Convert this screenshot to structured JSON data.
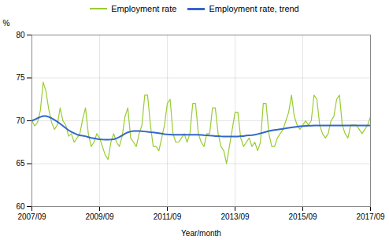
{
  "chart_data": {
    "type": "line",
    "xlabel": "Year/month",
    "ylabel": "%",
    "x": [
      0,
      1,
      2,
      3,
      4,
      5,
      6,
      7,
      8,
      9,
      10,
      11,
      12,
      13,
      14,
      15,
      16,
      17,
      18,
      19,
      20,
      21,
      22,
      23,
      24,
      25,
      26,
      27,
      28,
      29,
      30,
      31,
      32,
      33,
      34,
      35,
      36,
      37,
      38,
      39,
      40,
      41,
      42,
      43,
      44,
      45,
      46,
      47,
      48,
      49,
      50,
      51,
      52,
      53,
      54,
      55,
      56,
      57,
      58,
      59,
      60,
      61,
      62,
      63,
      64,
      65,
      66,
      67,
      68,
      69,
      70,
      71,
      72,
      73,
      74,
      75,
      76,
      77,
      78,
      79,
      80,
      81,
      82,
      83,
      84,
      85,
      86,
      87,
      88,
      89,
      90,
      91,
      92,
      93,
      94,
      95,
      96,
      97,
      98,
      99,
      100,
      101,
      102,
      103,
      104,
      105,
      106,
      107,
      108,
      109,
      110,
      111,
      112,
      113,
      114,
      115,
      116,
      117,
      118,
      119,
      120
    ],
    "xlim": [
      0,
      120
    ],
    "xticks": [
      {
        "value": 0,
        "label": "2007/09"
      },
      {
        "value": 24,
        "label": "2009/09"
      },
      {
        "value": 48,
        "label": "2011/09"
      },
      {
        "value": 72,
        "label": "2013/09"
      },
      {
        "value": 96,
        "label": "2015/09"
      },
      {
        "value": 120,
        "label": "2017/09"
      }
    ],
    "ylim": [
      60,
      80
    ],
    "yticks": [
      60,
      65,
      70,
      75,
      80
    ],
    "grid": true,
    "legend": "top",
    "series": [
      {
        "name": "Employment rate",
        "color": "#99cc33",
        "values": [
          70.0,
          69.4,
          69.8,
          71.2,
          74.5,
          73.4,
          71.3,
          69.8,
          69.0,
          69.5,
          71.5,
          70.0,
          69.5,
          68.2,
          68.5,
          67.5,
          68.0,
          68.5,
          70.2,
          71.5,
          68.5,
          67.0,
          67.5,
          68.5,
          68.0,
          67.0,
          66.0,
          65.5,
          67.5,
          68.5,
          67.5,
          67.0,
          68.2,
          70.5,
          71.5,
          68.0,
          67.5,
          67.0,
          68.5,
          69.5,
          73.0,
          73.0,
          69.5,
          67.0,
          67.0,
          66.5,
          68.0,
          69.5,
          72.0,
          72.5,
          68.5,
          67.5,
          67.5,
          68.0,
          68.5,
          67.5,
          68.5,
          72.0,
          72.0,
          68.5,
          67.5,
          67.0,
          68.5,
          68.5,
          71.5,
          71.5,
          68.5,
          67.0,
          66.5,
          65.0,
          67.0,
          69.0,
          71.0,
          71.0,
          68.0,
          67.0,
          67.5,
          68.0,
          67.0,
          67.5,
          66.5,
          67.5,
          72.0,
          72.0,
          68.5,
          67.0,
          67.0,
          68.0,
          68.5,
          69.0,
          70.0,
          71.0,
          73.0,
          70.5,
          69.5,
          69.0,
          69.5,
          70.0,
          69.5,
          70.0,
          73.0,
          72.5,
          69.5,
          68.5,
          68.0,
          68.5,
          70.0,
          70.5,
          72.5,
          73.0,
          69.5,
          68.5,
          68.0,
          69.5,
          69.5,
          69.5,
          69.0,
          68.5,
          69.0,
          69.5,
          70.5
        ]
      },
      {
        "name": "Employment rate, trend",
        "color": "#3366cc",
        "values": [
          70.0,
          70.15,
          70.3,
          70.45,
          70.55,
          70.55,
          70.45,
          70.3,
          70.1,
          69.9,
          69.65,
          69.4,
          69.15,
          68.9,
          68.7,
          68.55,
          68.4,
          68.3,
          68.25,
          68.2,
          68.1,
          68.0,
          67.95,
          67.9,
          67.85,
          67.82,
          67.8,
          67.8,
          67.82,
          67.85,
          67.95,
          68.1,
          68.3,
          68.5,
          68.65,
          68.75,
          68.8,
          68.8,
          68.8,
          68.78,
          68.75,
          68.72,
          68.68,
          68.65,
          68.6,
          68.55,
          68.5,
          68.45,
          68.42,
          68.4,
          68.38,
          68.37,
          68.37,
          68.37,
          68.37,
          68.37,
          68.37,
          68.37,
          68.37,
          68.37,
          68.35,
          68.32,
          68.3,
          68.27,
          68.25,
          68.22,
          68.2,
          68.18,
          68.17,
          68.17,
          68.17,
          68.17,
          68.17,
          68.17,
          68.2,
          68.22,
          68.27,
          68.3,
          68.33,
          68.38,
          68.45,
          68.53,
          68.62,
          68.72,
          68.8,
          68.87,
          68.93,
          68.97,
          69.02,
          69.07,
          69.12,
          69.17,
          69.22,
          69.27,
          69.32,
          69.35,
          69.38,
          69.4,
          69.42,
          69.43,
          69.44,
          69.44,
          69.45,
          69.45,
          69.45,
          69.45,
          69.45,
          69.45,
          69.45,
          69.45,
          69.45,
          69.45,
          69.45,
          69.45,
          69.45,
          69.45,
          69.45,
          69.45,
          69.45,
          69.45,
          69.45
        ]
      }
    ]
  }
}
